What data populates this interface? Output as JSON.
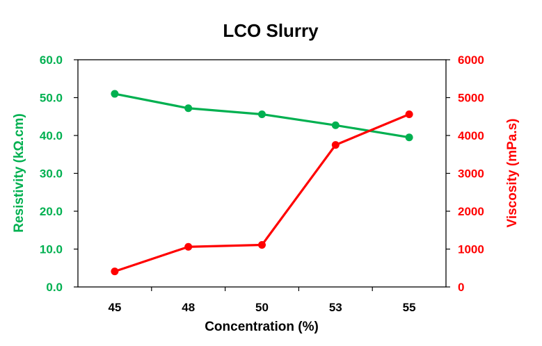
{
  "chart_data": {
    "type": "line",
    "title": "LCO Slurry",
    "xlabel": "Concentration (%)",
    "categories": [
      "45",
      "48",
      "50",
      "53",
      "55"
    ],
    "y_left": {
      "label": "Resistivity (kΩ.cm)",
      "ylim": [
        0,
        60
      ],
      "ticks": [
        "0.0",
        "10.0",
        "20.0",
        "30.0",
        "40.0",
        "50.0",
        "60.0"
      ],
      "tick_values": [
        0,
        10,
        20,
        30,
        40,
        50,
        60
      ],
      "color": "#00b050"
    },
    "y_right": {
      "label": "Viscosity (mPa.s)",
      "ylim": [
        0,
        6000
      ],
      "ticks": [
        "0",
        "1000",
        "2000",
        "3000",
        "4000",
        "5000",
        "6000"
      ],
      "tick_values": [
        0,
        1000,
        2000,
        3000,
        4000,
        5000,
        6000
      ],
      "color": "#ff0000"
    },
    "series": [
      {
        "axis": "left",
        "color": "#00b050",
        "values": [
          51.0,
          47.2,
          45.6,
          42.7,
          39.5
        ]
      },
      {
        "axis": "right",
        "color": "#ff0000",
        "values": [
          410,
          1060,
          1110,
          3750,
          4560
        ]
      }
    ],
    "grid": false,
    "legend": "none"
  }
}
